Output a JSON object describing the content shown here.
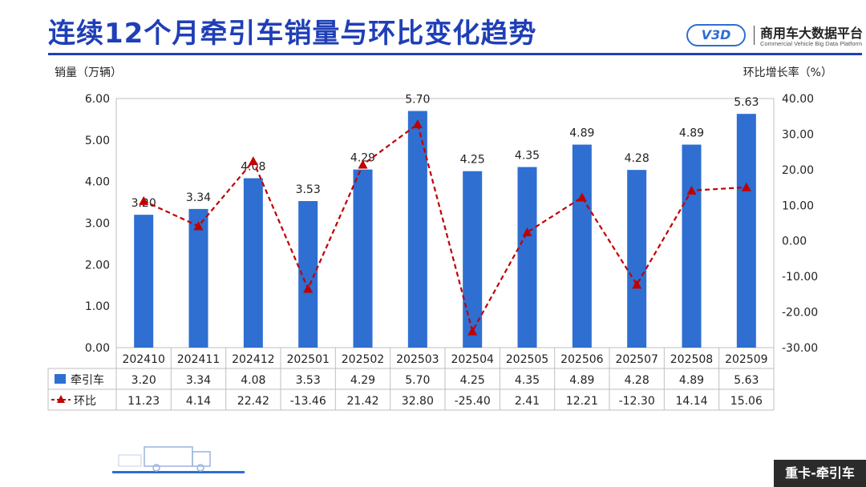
{
  "title": "连续12个月牵引车销量与环比变化趋势",
  "logo": {
    "badge": "V3D",
    "name": "商用车大数据平台",
    "subtitle": "Commercial Vehicle Big Data Platform"
  },
  "bottom_tag": "重卡-牵引车",
  "chart_data": {
    "type": "bar",
    "categories": [
      "202410",
      "202411",
      "202412",
      "202501",
      "202502",
      "202503",
      "202504",
      "202505",
      "202506",
      "202507",
      "202508",
      "202509"
    ],
    "series": [
      {
        "name": "牵引车",
        "type": "bar",
        "axis": "left",
        "color": "#2e6fd1",
        "values": [
          3.2,
          3.34,
          4.08,
          3.53,
          4.29,
          5.7,
          4.25,
          4.35,
          4.89,
          4.28,
          4.89,
          5.63
        ]
      },
      {
        "name": "环比",
        "type": "line",
        "axis": "right",
        "color": "#c00000",
        "line_style": "dashed",
        "marker": "triangle",
        "values": [
          11.23,
          4.14,
          22.42,
          -13.46,
          21.42,
          32.8,
          -25.4,
          2.41,
          12.21,
          -12.3,
          14.14,
          15.06
        ]
      }
    ],
    "bar_labels": [
      "3.20",
      "3.34",
      "4.08",
      "3.53",
      "4.29",
      "5.70",
      "4.25",
      "4.35",
      "4.89",
      "4.28",
      "4.89",
      "5.63"
    ],
    "line_labels": [
      "11.23",
      "4.14",
      "22.42",
      "-13.46",
      "21.42",
      "32.80",
      "-25.40",
      "2.41",
      "12.21",
      "-12.30",
      "14.14",
      "15.06"
    ],
    "ylabel_left": "销量（万辆）",
    "ylabel_right": "环比增长率（%）",
    "ylim_left": [
      0,
      6
    ],
    "ylim_right": [
      -30,
      40
    ],
    "yticks_left": [
      "6.00",
      "5.00",
      "4.00",
      "3.00",
      "2.00",
      "1.00",
      "0.00"
    ],
    "yticks_right": [
      "40.00",
      "30.00",
      "20.00",
      "10.00",
      "0.00",
      "-10.00",
      "-20.00",
      "-30.00"
    ],
    "data_table": true,
    "legend": "data-table"
  }
}
